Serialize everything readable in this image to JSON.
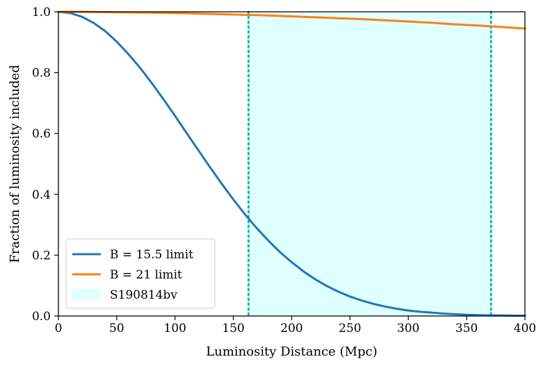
{
  "chart_data": {
    "type": "line",
    "title": "",
    "xlabel": "Luminosity Distance (Mpc)",
    "ylabel": "Fraction of luminosity included",
    "xlim": [
      0,
      400
    ],
    "ylim": [
      0,
      1.0
    ],
    "x_ticks": [
      0,
      50,
      100,
      150,
      200,
      250,
      300,
      350,
      400
    ],
    "y_ticks": [
      "0.0",
      "0.2",
      "0.4",
      "0.6",
      "0.8",
      "1.0"
    ],
    "grid": false,
    "legend_position": "lower-left",
    "series": [
      {
        "name": "B = 15.5 limit",
        "color": "#1f77b4",
        "x": [
          0,
          10,
          20,
          30,
          40,
          50,
          60,
          70,
          80,
          90,
          100,
          110,
          120,
          130,
          140,
          150,
          160,
          170,
          180,
          190,
          200,
          210,
          220,
          230,
          240,
          250,
          260,
          270,
          280,
          290,
          300,
          310,
          320,
          330,
          340,
          350,
          360,
          370,
          380,
          390,
          400
        ],
        "y": [
          1.0,
          0.996,
          0.984,
          0.964,
          0.937,
          0.902,
          0.861,
          0.816,
          0.766,
          0.713,
          0.658,
          0.601,
          0.545,
          0.489,
          0.435,
          0.383,
          0.334,
          0.289,
          0.248,
          0.21,
          0.177,
          0.147,
          0.121,
          0.099,
          0.08,
          0.064,
          0.051,
          0.04,
          0.031,
          0.024,
          0.018,
          0.014,
          0.011,
          0.008,
          0.006,
          0.004,
          0.003,
          0.002,
          0.002,
          0.001,
          0.001
        ]
      },
      {
        "name": "B = 21 limit",
        "color": "#ff7f0e",
        "x": [
          0,
          20,
          40,
          60,
          80,
          100,
          120,
          140,
          160,
          180,
          200,
          220,
          240,
          260,
          280,
          300,
          320,
          340,
          360,
          380,
          400
        ],
        "y": [
          1.0,
          1.0,
          0.999,
          0.998,
          0.997,
          0.996,
          0.994,
          0.992,
          0.99,
          0.988,
          0.985,
          0.982,
          0.979,
          0.976,
          0.972,
          0.968,
          0.964,
          0.959,
          0.955,
          0.95,
          0.945
        ]
      }
    ],
    "shaded_region": {
      "name": "S190814bv",
      "x_range": [
        163,
        371
      ],
      "fill_color": "#e0ffff",
      "line_color": "#00bfa5",
      "line_style": "dotted"
    },
    "legend": [
      "B = 15.5 limit",
      "B = 21 limit",
      "S190814bv"
    ]
  }
}
